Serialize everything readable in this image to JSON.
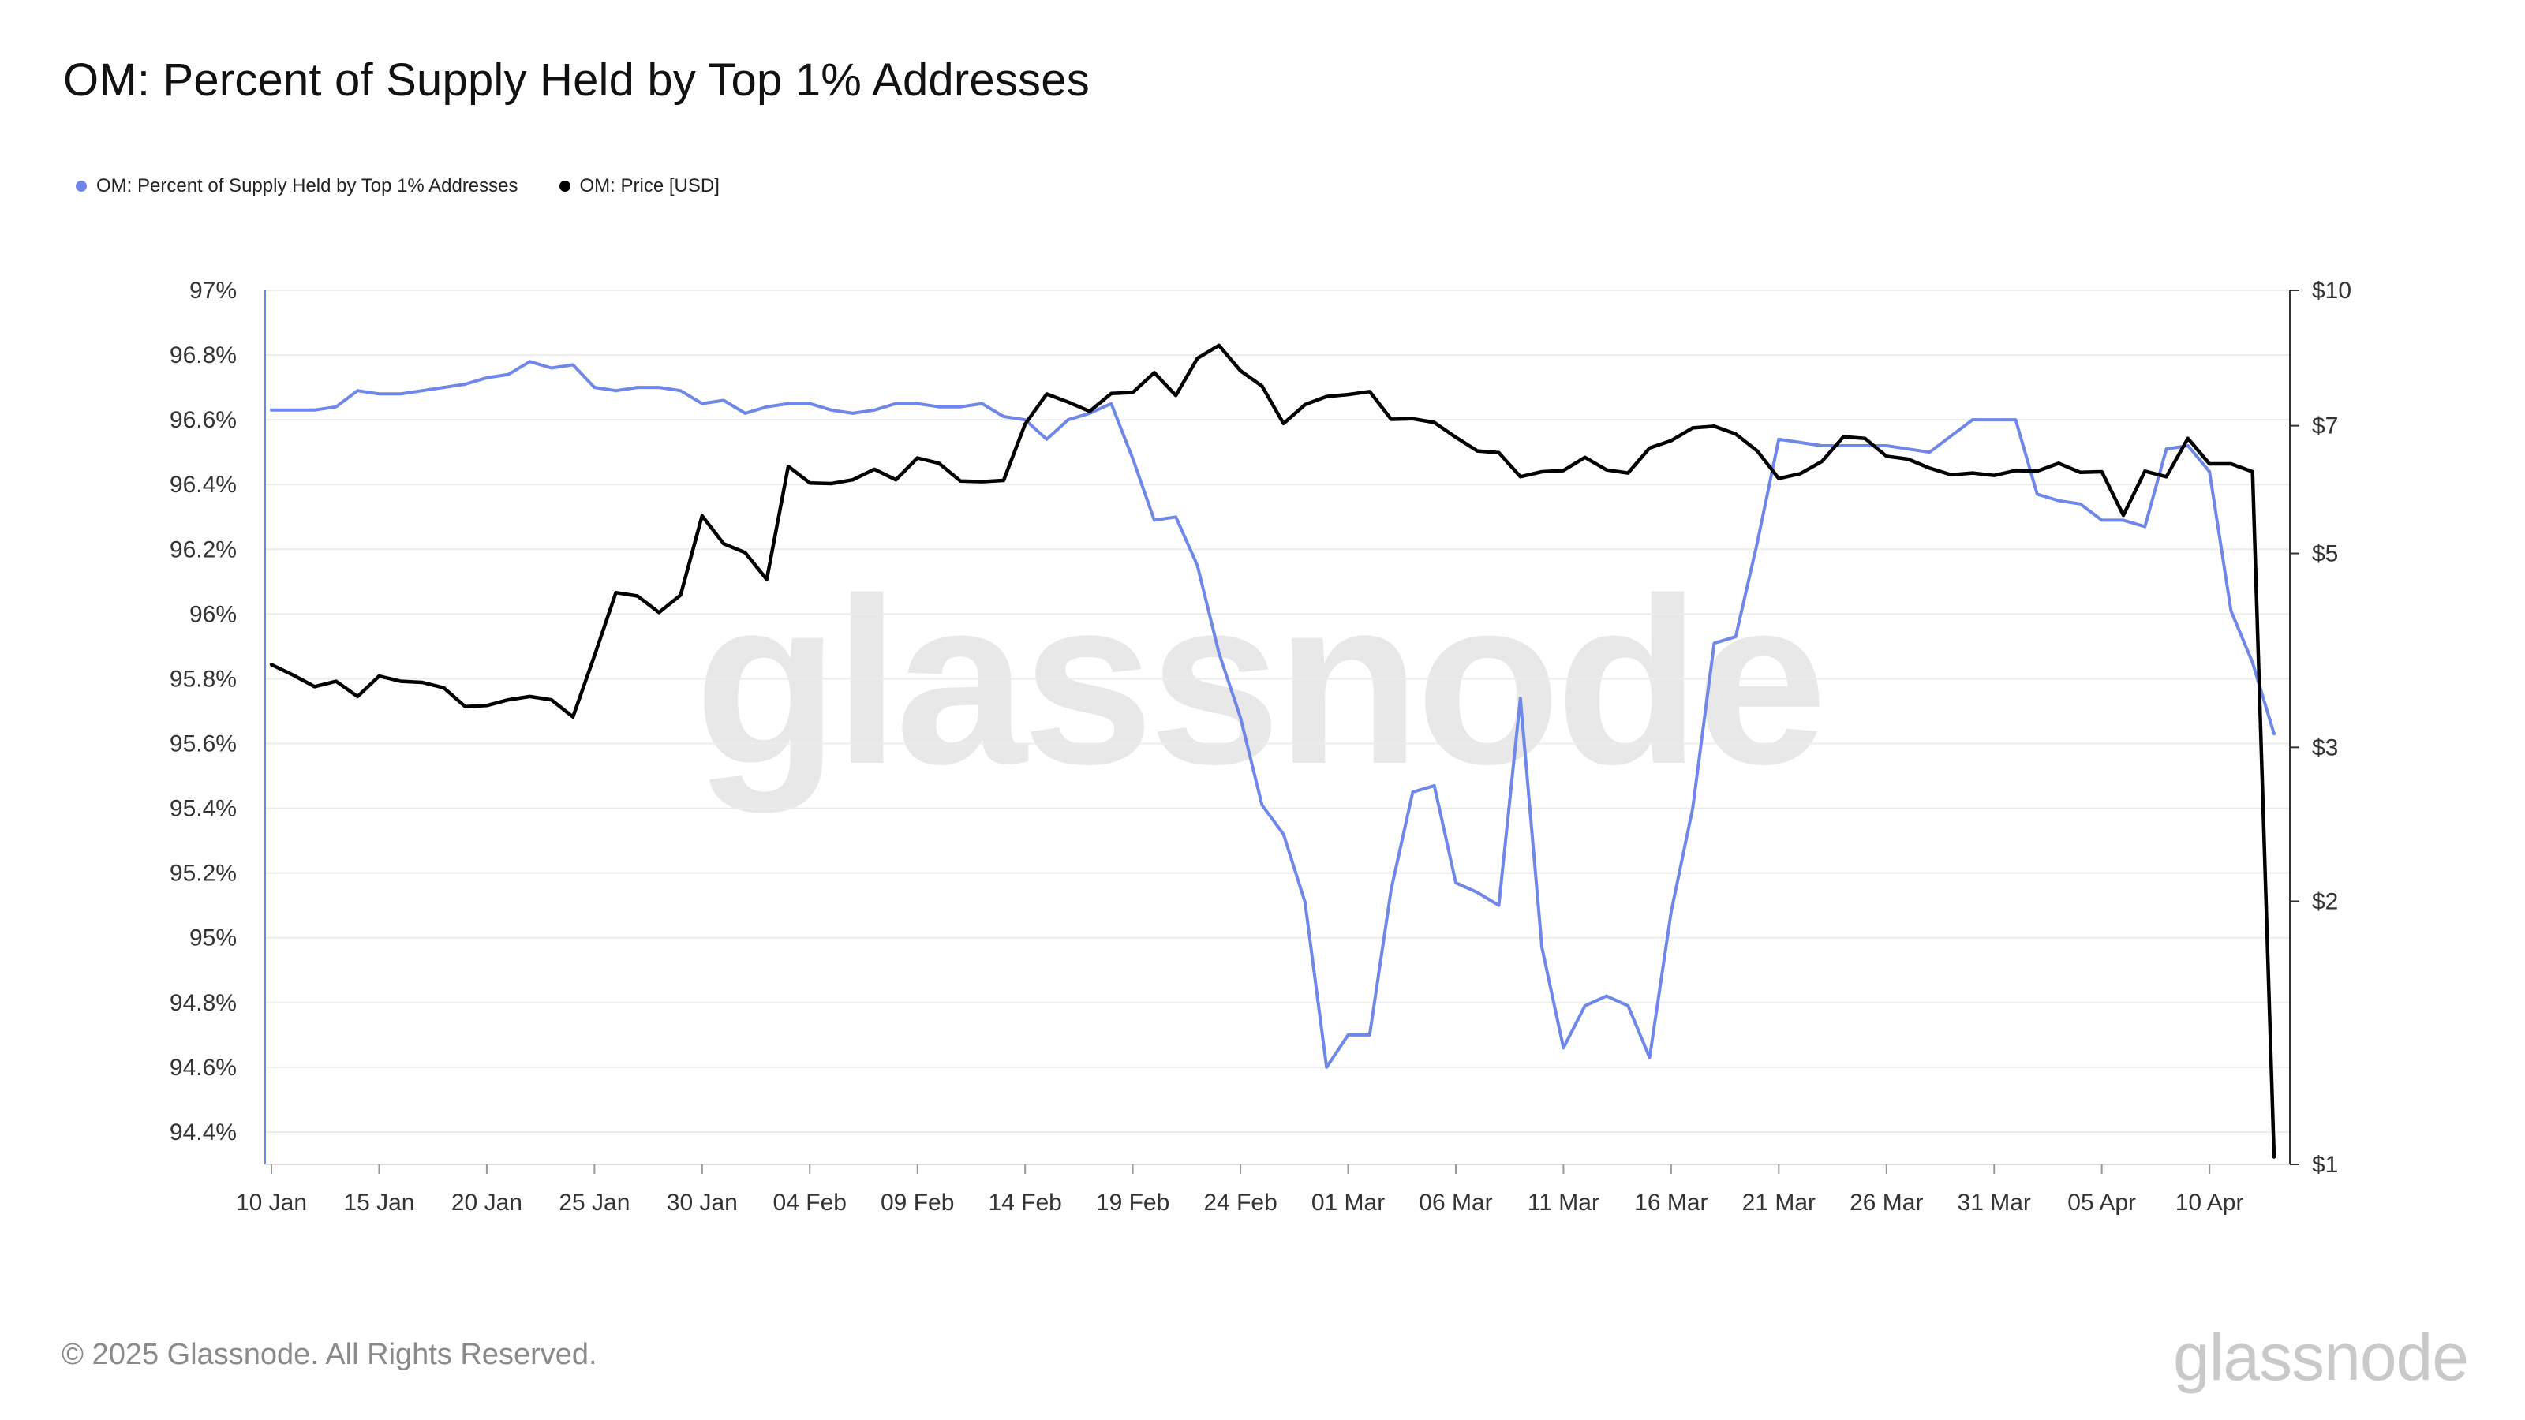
{
  "title": "OM: Percent of Supply Held by Top 1% Addresses",
  "legend": [
    {
      "label": "OM: Percent of Supply Held by Top 1% Addresses",
      "color": "#6f87e8"
    },
    {
      "label": "OM: Price [USD]",
      "color": "#000000"
    }
  ],
  "watermark": "glassnode",
  "footer": {
    "copyright": "© 2025 Glassnode. All Rights Reserved.",
    "logo": "glassnode"
  },
  "chart_data": {
    "type": "line",
    "title": "OM: Percent of Supply Held by Top 1% Addresses",
    "x_ticks": [
      "10 Jan",
      "15 Jan",
      "20 Jan",
      "25 Jan",
      "30 Jan",
      "04 Feb",
      "09 Feb",
      "14 Feb",
      "19 Feb",
      "24 Feb",
      "01 Mar",
      "06 Mar",
      "11 Mar",
      "16 Mar",
      "21 Mar",
      "26 Mar",
      "31 Mar",
      "05 Apr",
      "10 Apr"
    ],
    "x_range": [
      "2025-01-10",
      "2025-04-13"
    ],
    "y_left": {
      "ticks": [
        "97%",
        "96.8%",
        "96.6%",
        "96.4%",
        "96.2%",
        "96%",
        "95.8%",
        "95.6%",
        "95.4%",
        "95.2%",
        "95%",
        "94.8%",
        "94.6%",
        "94.4%"
      ],
      "range": [
        94.3,
        97.0
      ],
      "unit": "%"
    },
    "y_right": {
      "ticks": [
        "$10",
        "$7",
        "$5",
        "$3",
        "$2",
        "$1"
      ],
      "tick_values": [
        10,
        7,
        5,
        3,
        2,
        1
      ],
      "range": [
        1,
        10
      ],
      "scale": "log"
    },
    "grid": true,
    "legend_position": "top-left",
    "series": [
      {
        "name": "OM: Percent of Supply Held by Top 1% Addresses",
        "axis": "left",
        "color": "#6f87e8",
        "points": [
          [
            "2025-01-10",
            96.63
          ],
          [
            "2025-01-11",
            96.63
          ],
          [
            "2025-01-12",
            96.63
          ],
          [
            "2025-01-13",
            96.64
          ],
          [
            "2025-01-14",
            96.69
          ],
          [
            "2025-01-15",
            96.68
          ],
          [
            "2025-01-16",
            96.68
          ],
          [
            "2025-01-17",
            96.69
          ],
          [
            "2025-01-18",
            96.7
          ],
          [
            "2025-01-19",
            96.71
          ],
          [
            "2025-01-20",
            96.73
          ],
          [
            "2025-01-21",
            96.74
          ],
          [
            "2025-01-22",
            96.78
          ],
          [
            "2025-01-23",
            96.76
          ],
          [
            "2025-01-24",
            96.77
          ],
          [
            "2025-01-25",
            96.7
          ],
          [
            "2025-01-26",
            96.69
          ],
          [
            "2025-01-27",
            96.7
          ],
          [
            "2025-01-28",
            96.7
          ],
          [
            "2025-01-29",
            96.69
          ],
          [
            "2025-01-30",
            96.65
          ],
          [
            "2025-01-31",
            96.66
          ],
          [
            "2025-02-01",
            96.62
          ],
          [
            "2025-02-02",
            96.64
          ],
          [
            "2025-02-03",
            96.65
          ],
          [
            "2025-02-04",
            96.65
          ],
          [
            "2025-02-05",
            96.63
          ],
          [
            "2025-02-06",
            96.62
          ],
          [
            "2025-02-07",
            96.63
          ],
          [
            "2025-02-08",
            96.65
          ],
          [
            "2025-02-09",
            96.65
          ],
          [
            "2025-02-10",
            96.64
          ],
          [
            "2025-02-11",
            96.64
          ],
          [
            "2025-02-12",
            96.65
          ],
          [
            "2025-02-13",
            96.61
          ],
          [
            "2025-02-14",
            96.6
          ],
          [
            "2025-02-15",
            96.54
          ],
          [
            "2025-02-16",
            96.6
          ],
          [
            "2025-02-17",
            96.62
          ],
          [
            "2025-02-18",
            96.65
          ],
          [
            "2025-02-19",
            96.48
          ],
          [
            "2025-02-20",
            96.29
          ],
          [
            "2025-02-21",
            96.3
          ],
          [
            "2025-02-22",
            96.15
          ],
          [
            "2025-02-23",
            95.88
          ],
          [
            "2025-02-24",
            95.68
          ],
          [
            "2025-02-25",
            95.41
          ],
          [
            "2025-02-26",
            95.32
          ],
          [
            "2025-02-27",
            95.11
          ],
          [
            "2025-02-28",
            94.6
          ],
          [
            "2025-03-01",
            94.7
          ],
          [
            "2025-03-02",
            94.7
          ],
          [
            "2025-03-03",
            95.15
          ],
          [
            "2025-03-04",
            95.45
          ],
          [
            "2025-03-05",
            95.47
          ],
          [
            "2025-03-06",
            95.17
          ],
          [
            "2025-03-07",
            95.14
          ],
          [
            "2025-03-08",
            95.1
          ],
          [
            "2025-03-09",
            95.74
          ],
          [
            "2025-03-10",
            94.97
          ],
          [
            "2025-03-11",
            94.66
          ],
          [
            "2025-03-12",
            94.79
          ],
          [
            "2025-03-13",
            94.82
          ],
          [
            "2025-03-14",
            94.79
          ],
          [
            "2025-03-15",
            94.63
          ],
          [
            "2025-03-16",
            95.08
          ],
          [
            "2025-03-17",
            95.4
          ],
          [
            "2025-03-18",
            95.91
          ],
          [
            "2025-03-19",
            95.93
          ],
          [
            "2025-03-20",
            96.22
          ],
          [
            "2025-03-21",
            96.54
          ],
          [
            "2025-03-22",
            96.53
          ],
          [
            "2025-03-23",
            96.52
          ],
          [
            "2025-03-24",
            96.52
          ],
          [
            "2025-03-25",
            96.52
          ],
          [
            "2025-03-26",
            96.52
          ],
          [
            "2025-03-27",
            96.51
          ],
          [
            "2025-03-28",
            96.5
          ],
          [
            "2025-03-29",
            96.55
          ],
          [
            "2025-03-30",
            96.6
          ],
          [
            "2025-03-31",
            96.6
          ],
          [
            "2025-04-01",
            96.6
          ],
          [
            "2025-04-02",
            96.37
          ],
          [
            "2025-04-03",
            96.35
          ],
          [
            "2025-04-04",
            96.34
          ],
          [
            "2025-04-05",
            96.29
          ],
          [
            "2025-04-06",
            96.29
          ],
          [
            "2025-04-07",
            96.27
          ],
          [
            "2025-04-08",
            96.51
          ],
          [
            "2025-04-09",
            96.52
          ],
          [
            "2025-04-10",
            96.44
          ],
          [
            "2025-04-11",
            96.01
          ],
          [
            "2025-04-12",
            95.85
          ],
          [
            "2025-04-13",
            95.63
          ]
        ]
      },
      {
        "name": "OM: Price [USD]",
        "axis": "right",
        "color": "#000000",
        "points": [
          [
            "2025-01-10",
            3.73
          ],
          [
            "2025-01-11",
            3.63
          ],
          [
            "2025-01-12",
            3.52
          ],
          [
            "2025-01-13",
            3.57
          ],
          [
            "2025-01-14",
            3.43
          ],
          [
            "2025-01-15",
            3.62
          ],
          [
            "2025-01-16",
            3.57
          ],
          [
            "2025-01-17",
            3.56
          ],
          [
            "2025-01-18",
            3.51
          ],
          [
            "2025-01-19",
            3.34
          ],
          [
            "2025-01-20",
            3.35
          ],
          [
            "2025-01-21",
            3.4
          ],
          [
            "2025-01-22",
            3.43
          ],
          [
            "2025-01-23",
            3.4
          ],
          [
            "2025-01-24",
            3.25
          ],
          [
            "2025-01-25",
            3.82
          ],
          [
            "2025-01-26",
            4.51
          ],
          [
            "2025-01-27",
            4.47
          ],
          [
            "2025-01-28",
            4.28
          ],
          [
            "2025-01-29",
            4.48
          ],
          [
            "2025-01-30",
            5.52
          ],
          [
            "2025-01-31",
            5.13
          ],
          [
            "2025-02-01",
            5.01
          ],
          [
            "2025-02-02",
            4.67
          ],
          [
            "2025-02-03",
            6.29
          ],
          [
            "2025-02-04",
            6.02
          ],
          [
            "2025-02-05",
            6.01
          ],
          [
            "2025-02-06",
            6.07
          ],
          [
            "2025-02-07",
            6.24
          ],
          [
            "2025-02-08",
            6.07
          ],
          [
            "2025-02-09",
            6.43
          ],
          [
            "2025-02-10",
            6.34
          ],
          [
            "2025-02-11",
            6.05
          ],
          [
            "2025-02-12",
            6.04
          ],
          [
            "2025-02-13",
            6.06
          ],
          [
            "2025-02-14",
            7.03
          ],
          [
            "2025-02-15",
            7.61
          ],
          [
            "2025-02-16",
            7.45
          ],
          [
            "2025-02-17",
            7.27
          ],
          [
            "2025-02-18",
            7.62
          ],
          [
            "2025-02-19",
            7.64
          ],
          [
            "2025-02-20",
            8.05
          ],
          [
            "2025-02-21",
            7.58
          ],
          [
            "2025-02-22",
            8.36
          ],
          [
            "2025-02-23",
            8.65
          ],
          [
            "2025-02-24",
            8.09
          ],
          [
            "2025-02-25",
            7.77
          ],
          [
            "2025-02-26",
            7.04
          ],
          [
            "2025-02-27",
            7.4
          ],
          [
            "2025-02-28",
            7.56
          ],
          [
            "2025-03-01",
            7.6
          ],
          [
            "2025-03-02",
            7.66
          ],
          [
            "2025-03-03",
            7.12
          ],
          [
            "2025-03-04",
            7.13
          ],
          [
            "2025-03-05",
            7.06
          ],
          [
            "2025-03-06",
            6.79
          ],
          [
            "2025-03-07",
            6.55
          ],
          [
            "2025-03-08",
            6.52
          ],
          [
            "2025-03-09",
            6.12
          ],
          [
            "2025-03-10",
            6.2
          ],
          [
            "2025-03-11",
            6.22
          ],
          [
            "2025-03-12",
            6.44
          ],
          [
            "2025-03-13",
            6.23
          ],
          [
            "2025-03-14",
            6.18
          ],
          [
            "2025-03-15",
            6.6
          ],
          [
            "2025-03-16",
            6.73
          ],
          [
            "2025-03-17",
            6.96
          ],
          [
            "2025-03-18",
            6.99
          ],
          [
            "2025-03-19",
            6.85
          ],
          [
            "2025-03-20",
            6.55
          ],
          [
            "2025-03-21",
            6.09
          ],
          [
            "2025-03-22",
            6.17
          ],
          [
            "2025-03-23",
            6.37
          ],
          [
            "2025-03-24",
            6.8
          ],
          [
            "2025-03-25",
            6.77
          ],
          [
            "2025-03-26",
            6.46
          ],
          [
            "2025-03-27",
            6.41
          ],
          [
            "2025-03-28",
            6.26
          ],
          [
            "2025-03-29",
            6.15
          ],
          [
            "2025-03-30",
            6.18
          ],
          [
            "2025-03-31",
            6.14
          ],
          [
            "2025-04-01",
            6.22
          ],
          [
            "2025-04-02",
            6.21
          ],
          [
            "2025-04-03",
            6.34
          ],
          [
            "2025-04-04",
            6.19
          ],
          [
            "2025-04-05",
            6.2
          ],
          [
            "2025-04-06",
            5.53
          ],
          [
            "2025-04-07",
            6.21
          ],
          [
            "2025-04-08",
            6.12
          ],
          [
            "2025-04-09",
            6.77
          ],
          [
            "2025-04-10",
            6.33
          ],
          [
            "2025-04-11",
            6.33
          ],
          [
            "2025-04-12",
            6.2
          ],
          [
            "2025-04-13",
            1.02
          ]
        ]
      }
    ]
  }
}
